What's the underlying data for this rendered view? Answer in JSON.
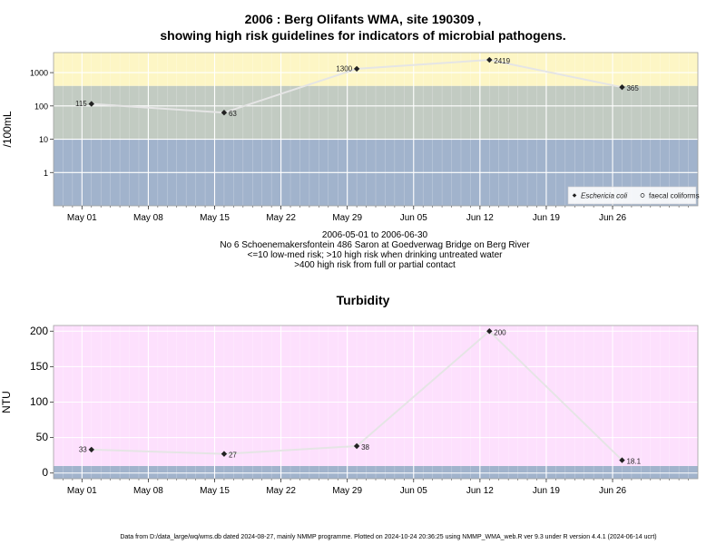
{
  "chart_data": [
    {
      "type": "line",
      "title": "2006 : Berg Olifants WMA, site 190309 ,",
      "subtitle": "showing high risk guidelines for indicators of microbial pathogens.",
      "ylabel": "/100mL",
      "yscale": "log",
      "ylim": [
        0.1,
        4000
      ],
      "y_ticks": [
        {
          "value": 1,
          "label": "1"
        },
        {
          "value": 10,
          "label": "10"
        },
        {
          "value": 100,
          "label": "100"
        },
        {
          "value": 1000,
          "label": "1000"
        }
      ],
      "xlim": [
        "2006-04-28",
        "2006-07-05"
      ],
      "x_ticks": [
        {
          "date": "2006-05-01",
          "label": "May 01"
        },
        {
          "date": "2006-05-08",
          "label": "May 08"
        },
        {
          "date": "2006-05-15",
          "label": "May 15"
        },
        {
          "date": "2006-05-22",
          "label": "May 22"
        },
        {
          "date": "2006-05-29",
          "label": "May 29"
        },
        {
          "date": "2006-06-05",
          "label": "Jun 05"
        },
        {
          "date": "2006-06-12",
          "label": "Jun 12"
        },
        {
          "date": "2006-06-19",
          "label": "Jun 19"
        },
        {
          "date": "2006-06-26",
          "label": "Jun 26"
        }
      ],
      "bands": [
        {
          "from": 0.1,
          "to": 10,
          "color": "#a1b3cc"
        },
        {
          "from": 10,
          "to": 400,
          "color": "#c2cbc2"
        },
        {
          "from": 400,
          "to": 4000,
          "color": "#fdf6c5"
        }
      ],
      "grid": true,
      "legend_position": "bottom-right",
      "series": [
        {
          "name": "Eschericia coli",
          "color": "#e5e5e5",
          "marker": "diamond",
          "points": [
            {
              "x": "2006-05-02",
              "y": 115,
              "label": "115",
              "label_side": "left"
            },
            {
              "x": "2006-05-16",
              "y": 63,
              "label": "63",
              "label_side": "right"
            },
            {
              "x": "2006-05-30",
              "y": 1300,
              "label": "1300",
              "label_side": "left"
            },
            {
              "x": "2006-06-13",
              "y": 2419,
              "label": "2419",
              "label_side": "right"
            },
            {
              "x": "2006-06-27",
              "y": 365,
              "label": "365",
              "label_side": "right"
            }
          ]
        },
        {
          "name": "faecal coliforms",
          "color": "#e5e5e5",
          "marker": "circle-open",
          "points": []
        }
      ],
      "captions": [
        "2006-05-01 to 2006-06-30",
        "No 6 Schoenemakersfontein 486 Saron at Goedverwag Bridge on Berg River",
        "<=10 low-med risk; >10 high risk when drinking untreated water",
        ">400 high risk from full or partial contact"
      ]
    },
    {
      "type": "line",
      "title": "Turbidity",
      "ylabel": "NTU",
      "ylim": [
        -8,
        208
      ],
      "y_ticks": [
        {
          "value": 0,
          "label": "0"
        },
        {
          "value": 50,
          "label": "50"
        },
        {
          "value": 100,
          "label": "100"
        },
        {
          "value": 150,
          "label": "150"
        },
        {
          "value": 200,
          "label": "200"
        }
      ],
      "xlim": [
        "2006-04-28",
        "2006-07-05"
      ],
      "x_ticks": [
        {
          "date": "2006-05-01",
          "label": "May 01"
        },
        {
          "date": "2006-05-08",
          "label": "May 08"
        },
        {
          "date": "2006-05-15",
          "label": "May 15"
        },
        {
          "date": "2006-05-22",
          "label": "May 22"
        },
        {
          "date": "2006-05-29",
          "label": "May 29"
        },
        {
          "date": "2006-06-05",
          "label": "Jun 05"
        },
        {
          "date": "2006-06-12",
          "label": "Jun 12"
        },
        {
          "date": "2006-06-19",
          "label": "Jun 19"
        },
        {
          "date": "2006-06-26",
          "label": "Jun 26"
        }
      ],
      "bands": [
        {
          "from": -8,
          "to": 10,
          "color": "#a1b3cc"
        },
        {
          "from": 10,
          "to": 208,
          "color": "#fde0fd"
        }
      ],
      "grid": true,
      "series": [
        {
          "color": "#e5e5e5",
          "marker": "diamond",
          "points": [
            {
              "x": "2006-05-02",
              "y": 33,
              "label": "33",
              "label_side": "left"
            },
            {
              "x": "2006-05-16",
              "y": 27,
              "label": "27",
              "label_side": "right"
            },
            {
              "x": "2006-05-30",
              "y": 38,
              "label": "38",
              "label_side": "right"
            },
            {
              "x": "2006-06-13",
              "y": 200,
              "label": "200",
              "label_side": "right"
            },
            {
              "x": "2006-06-27",
              "y": 18.1,
              "label": "18.1",
              "label_side": "right"
            }
          ]
        }
      ]
    }
  ],
  "footer": "Data from D:/data_large/wq/wms.db dated 2024-08-27, mainly NMMP programme. Plotted on 2024-10-24 20:36:25 using NMMP_WMA_web.R ver 9.3 under R version 4.4.1 (2024-06-14 ucrt)"
}
